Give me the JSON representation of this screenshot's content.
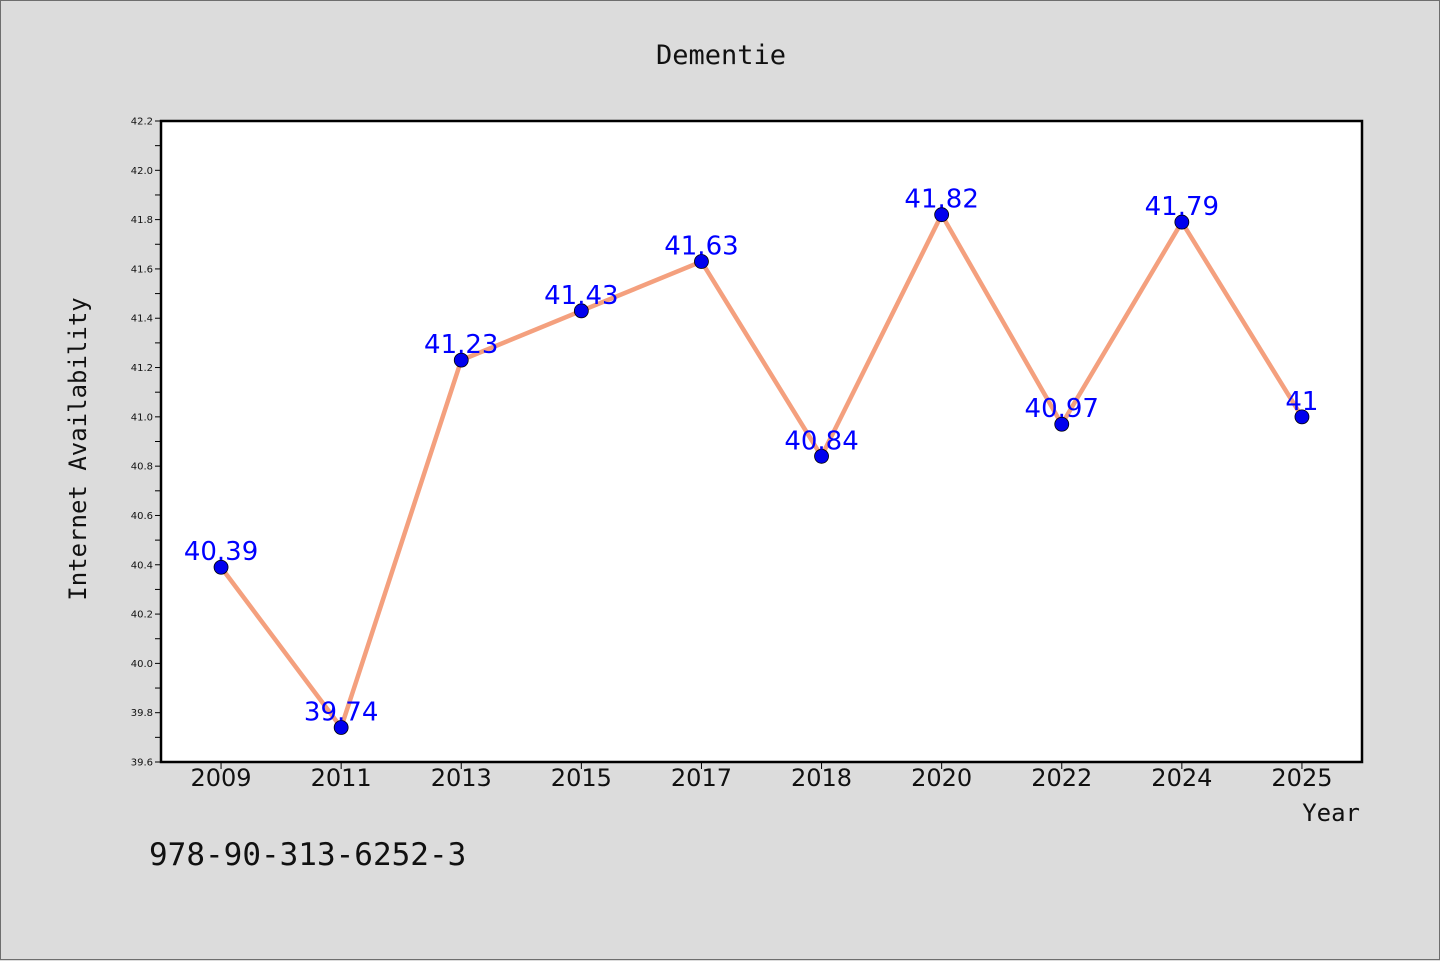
{
  "chart_data": {
    "type": "line",
    "title": "Dementie",
    "xlabel": "Year",
    "ylabel": "Internet Availability",
    "categories": [
      "2009",
      "2011",
      "2013",
      "2015",
      "2017",
      "2018",
      "2020",
      "2022",
      "2024",
      "2025"
    ],
    "series": [
      {
        "values": [
          40.39,
          39.74,
          41.23,
          41.43,
          41.63,
          40.84,
          41.82,
          40.97,
          41.79,
          41
        ],
        "labels": [
          "40.39",
          "39.74",
          "41.23",
          "41.43",
          "41.63",
          "40.84",
          "41.82",
          "40.97",
          "41.79",
          "41"
        ],
        "line_color": "#f4a07e",
        "marker_color": "#0000ee"
      }
    ],
    "ylim": [
      39.6,
      42.2
    ],
    "yticks": [
      "39.6",
      "39.8",
      "40.0",
      "40.2",
      "40.4",
      "40.6",
      "40.8",
      "41.0",
      "41.2",
      "41.4",
      "41.6",
      "41.8",
      "42.0",
      "42.2"
    ],
    "grid": false,
    "label_color": "#0000ff"
  },
  "footer_text": "978-90-313-6252-3"
}
